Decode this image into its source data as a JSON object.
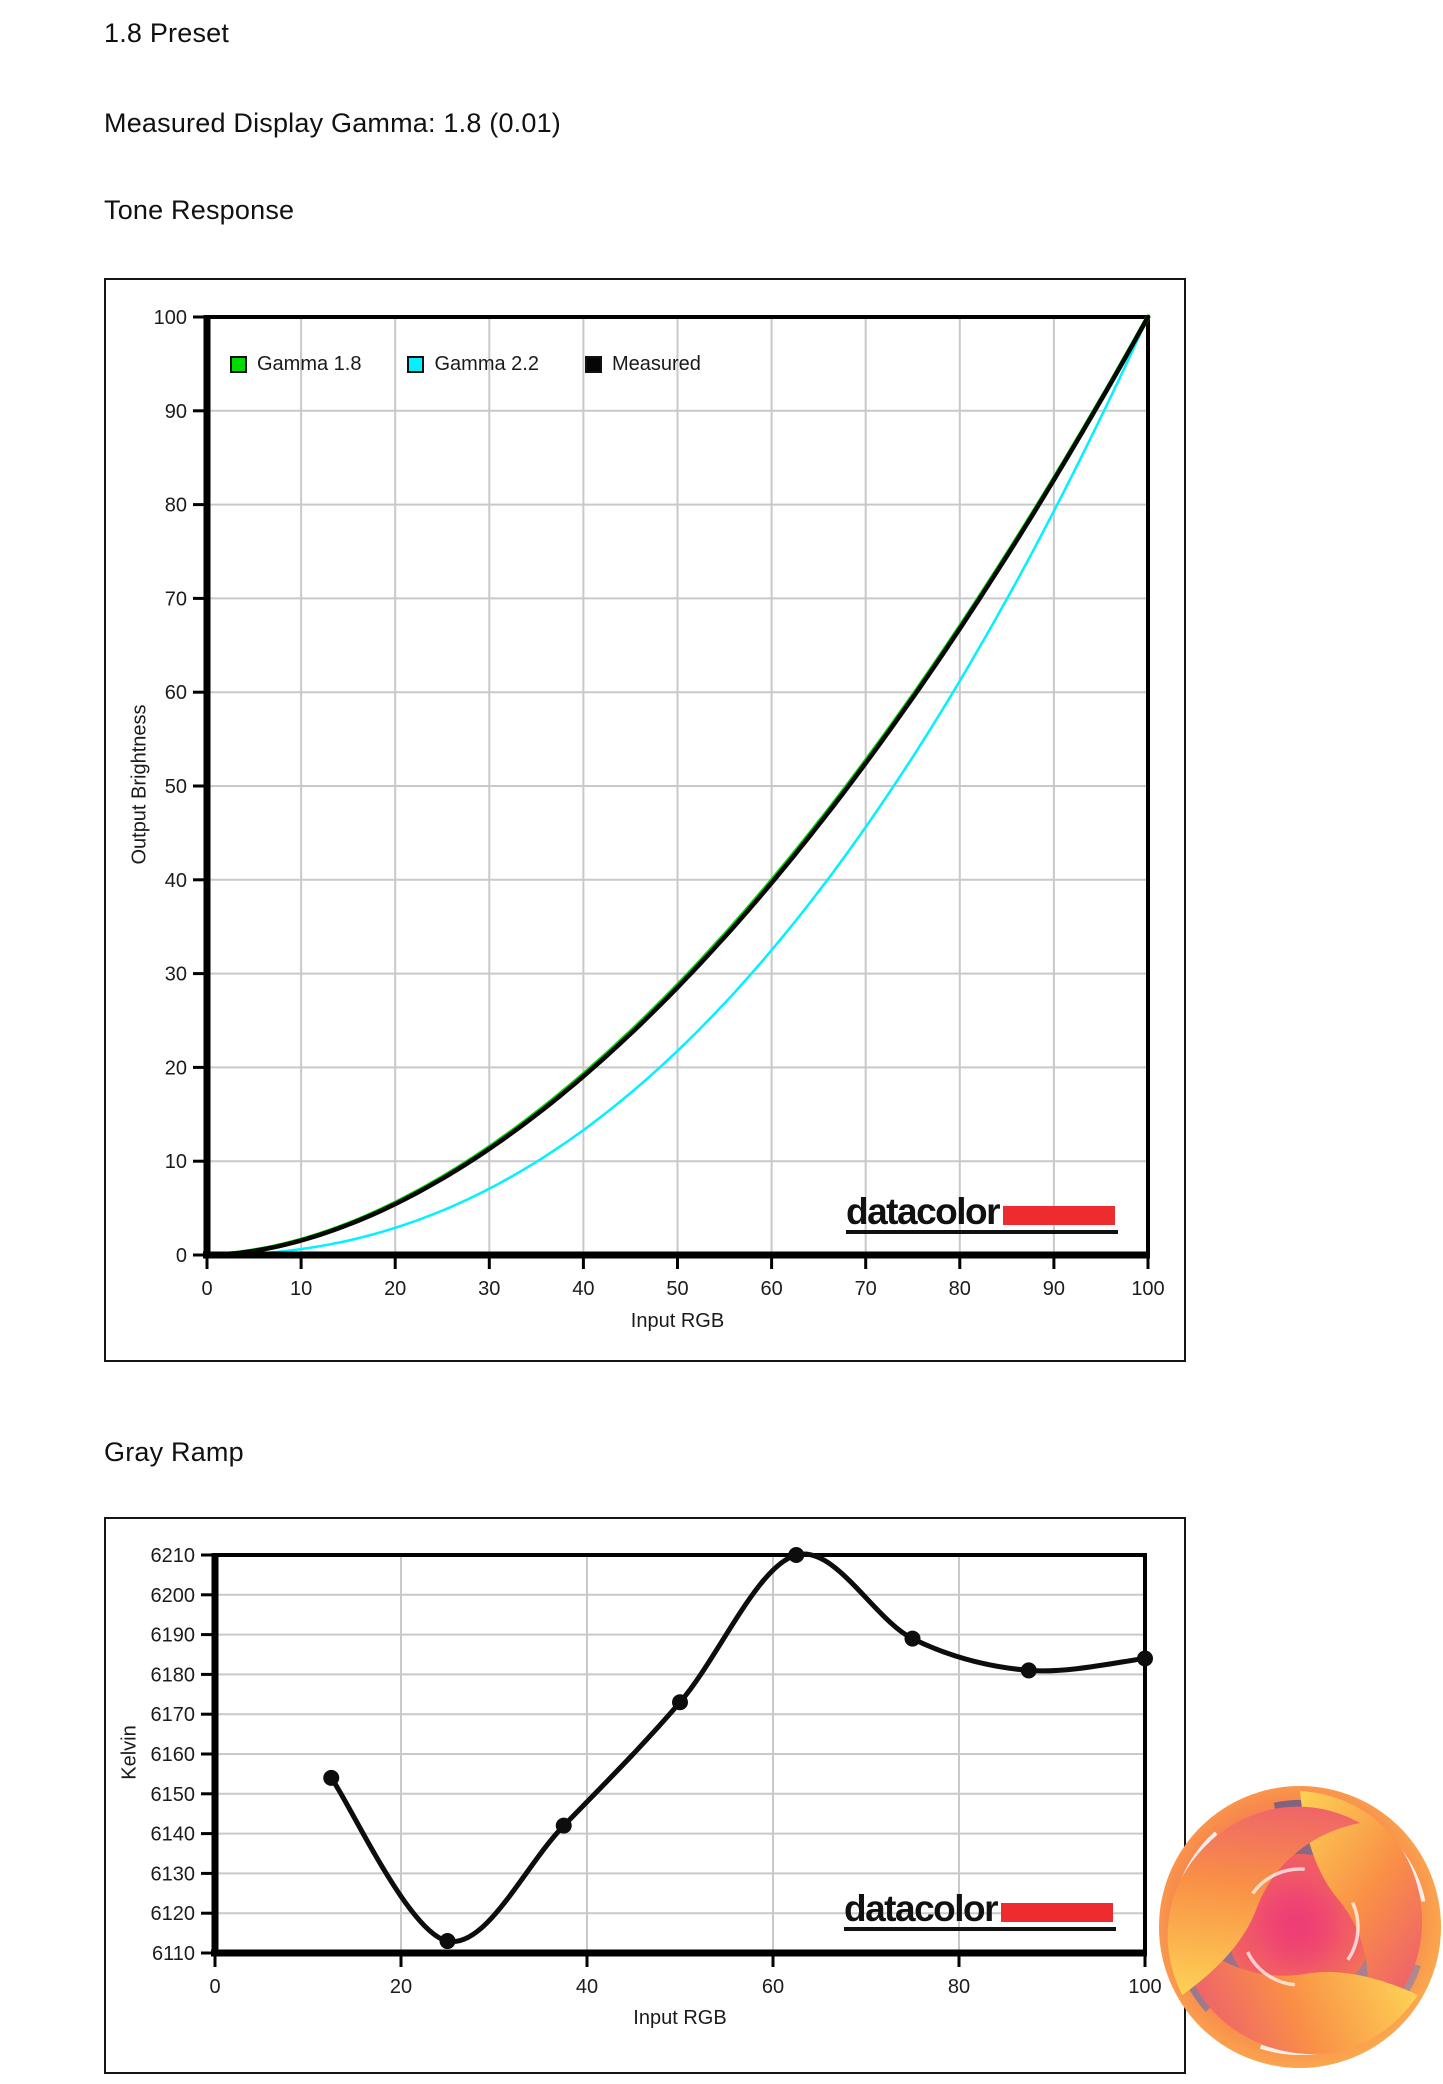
{
  "page": {
    "title": "1.8 Preset",
    "subtitle": "Measured Display Gamma: 1.8 (0.01)"
  },
  "branding": {
    "datacolor_text": "datacolor",
    "datacolor_red": "#ee2b2e",
    "kitguru_logo": "kitguru-swirl-logo"
  },
  "chart_data": [
    {
      "type": "line",
      "title": "Tone Response",
      "xlabel": "Input RGB",
      "ylabel": "Output Brightness",
      "xlim": [
        0,
        100
      ],
      "ylim": [
        0,
        100
      ],
      "x_ticks": [
        0,
        10,
        20,
        30,
        40,
        50,
        60,
        70,
        80,
        90,
        100
      ],
      "y_ticks": [
        0,
        10,
        20,
        30,
        40,
        50,
        60,
        70,
        80,
        90,
        100
      ],
      "grid": true,
      "grid_color": "#c9c9c9",
      "legend_position": "top-left-inside",
      "series": [
        {
          "name": "Gamma 1.8",
          "color": "#00dc00",
          "width": 5,
          "gamma": 1.8,
          "x": [
            0,
            10,
            20,
            30,
            40,
            50,
            60,
            70,
            80,
            90,
            100
          ],
          "values": [
            0,
            1.6,
            5.5,
            11.5,
            19.2,
            28.7,
            39.9,
            52.6,
            66.9,
            82.7,
            100
          ]
        },
        {
          "name": "Gamma 2.2",
          "color": "#00f2ff",
          "width": 2.5,
          "gamma": 2.2,
          "x": [
            0,
            10,
            20,
            30,
            40,
            50,
            60,
            70,
            80,
            90,
            100
          ],
          "values": [
            0,
            0.6,
            2.9,
            7.1,
            13.3,
            21.8,
            32.5,
            45.6,
            61.2,
            79.3,
            100
          ]
        },
        {
          "name": "Measured",
          "color": "#070707",
          "width": 4.5,
          "gamma": 1.81,
          "x": [
            0,
            10,
            20,
            30,
            40,
            50,
            60,
            70,
            80,
            90,
            100
          ],
          "values": [
            0,
            1.5,
            5.4,
            11.3,
            19.0,
            28.5,
            39.7,
            52.3,
            66.7,
            82.5,
            100
          ]
        }
      ]
    },
    {
      "type": "line",
      "title": "Gray Ramp",
      "xlabel": "Input RGB",
      "ylabel": "Kelvin",
      "xlim": [
        0,
        100
      ],
      "ylim": [
        6110,
        6210
      ],
      "x_ticks": [
        0,
        20,
        40,
        60,
        80,
        100
      ],
      "y_ticks": [
        6110,
        6120,
        6130,
        6140,
        6150,
        6160,
        6170,
        6180,
        6190,
        6200,
        6210
      ],
      "grid": true,
      "grid_color": "#c9c9c9",
      "legend_position": "none",
      "series": [
        {
          "color": "#0d0d0d",
          "width": 5,
          "smooth": true,
          "marker": 8,
          "x": [
            12.5,
            25,
            37.5,
            50,
            62.5,
            75,
            87.5,
            100
          ],
          "values": [
            6154,
            6113,
            6142,
            6173,
            6210,
            6189,
            6181,
            6184
          ]
        }
      ]
    }
  ]
}
